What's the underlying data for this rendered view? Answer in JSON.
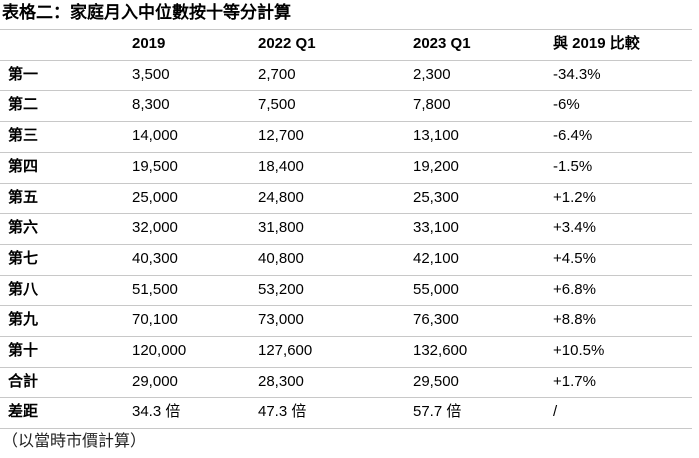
{
  "title": "表格二：家庭月入中位數按十等分計算",
  "table": {
    "header": [
      "2019",
      "2022 Q1",
      "2023 Q1",
      "與 2019 比較"
    ],
    "rows": [
      [
        "第一",
        "3,500",
        "2,700",
        "2,300",
        "-34.3%"
      ],
      [
        "第二",
        "8,300",
        "7,500",
        "7,800",
        "-6%"
      ],
      [
        "第三",
        "14,000",
        "12,700",
        "13,100",
        "-6.4%"
      ],
      [
        "第四",
        "19,500",
        "18,400",
        "19,200",
        "-1.5%"
      ],
      [
        "第五",
        "25,000",
        "24,800",
        "25,300",
        "+1.2%"
      ],
      [
        "第六",
        "32,000",
        "31,800",
        "33,100",
        "+3.4%"
      ],
      [
        "第七",
        "40,300",
        "40,800",
        "42,100",
        "+4.5%"
      ],
      [
        "第八",
        "51,500",
        "53,200",
        "55,000",
        "+6.8%"
      ],
      [
        "第九",
        "70,100",
        "73,000",
        "76,300",
        "+8.8%"
      ],
      [
        "第十",
        "120,000",
        "127,600",
        "132,600",
        "+10.5%"
      ],
      [
        "合計",
        "29,000",
        "28,300",
        "29,500",
        "+1.7%"
      ],
      [
        "差距",
        "34.3 倍",
        "47.3 倍",
        "57.7 倍",
        "/"
      ]
    ]
  },
  "note": "（以當時市價計算）"
}
